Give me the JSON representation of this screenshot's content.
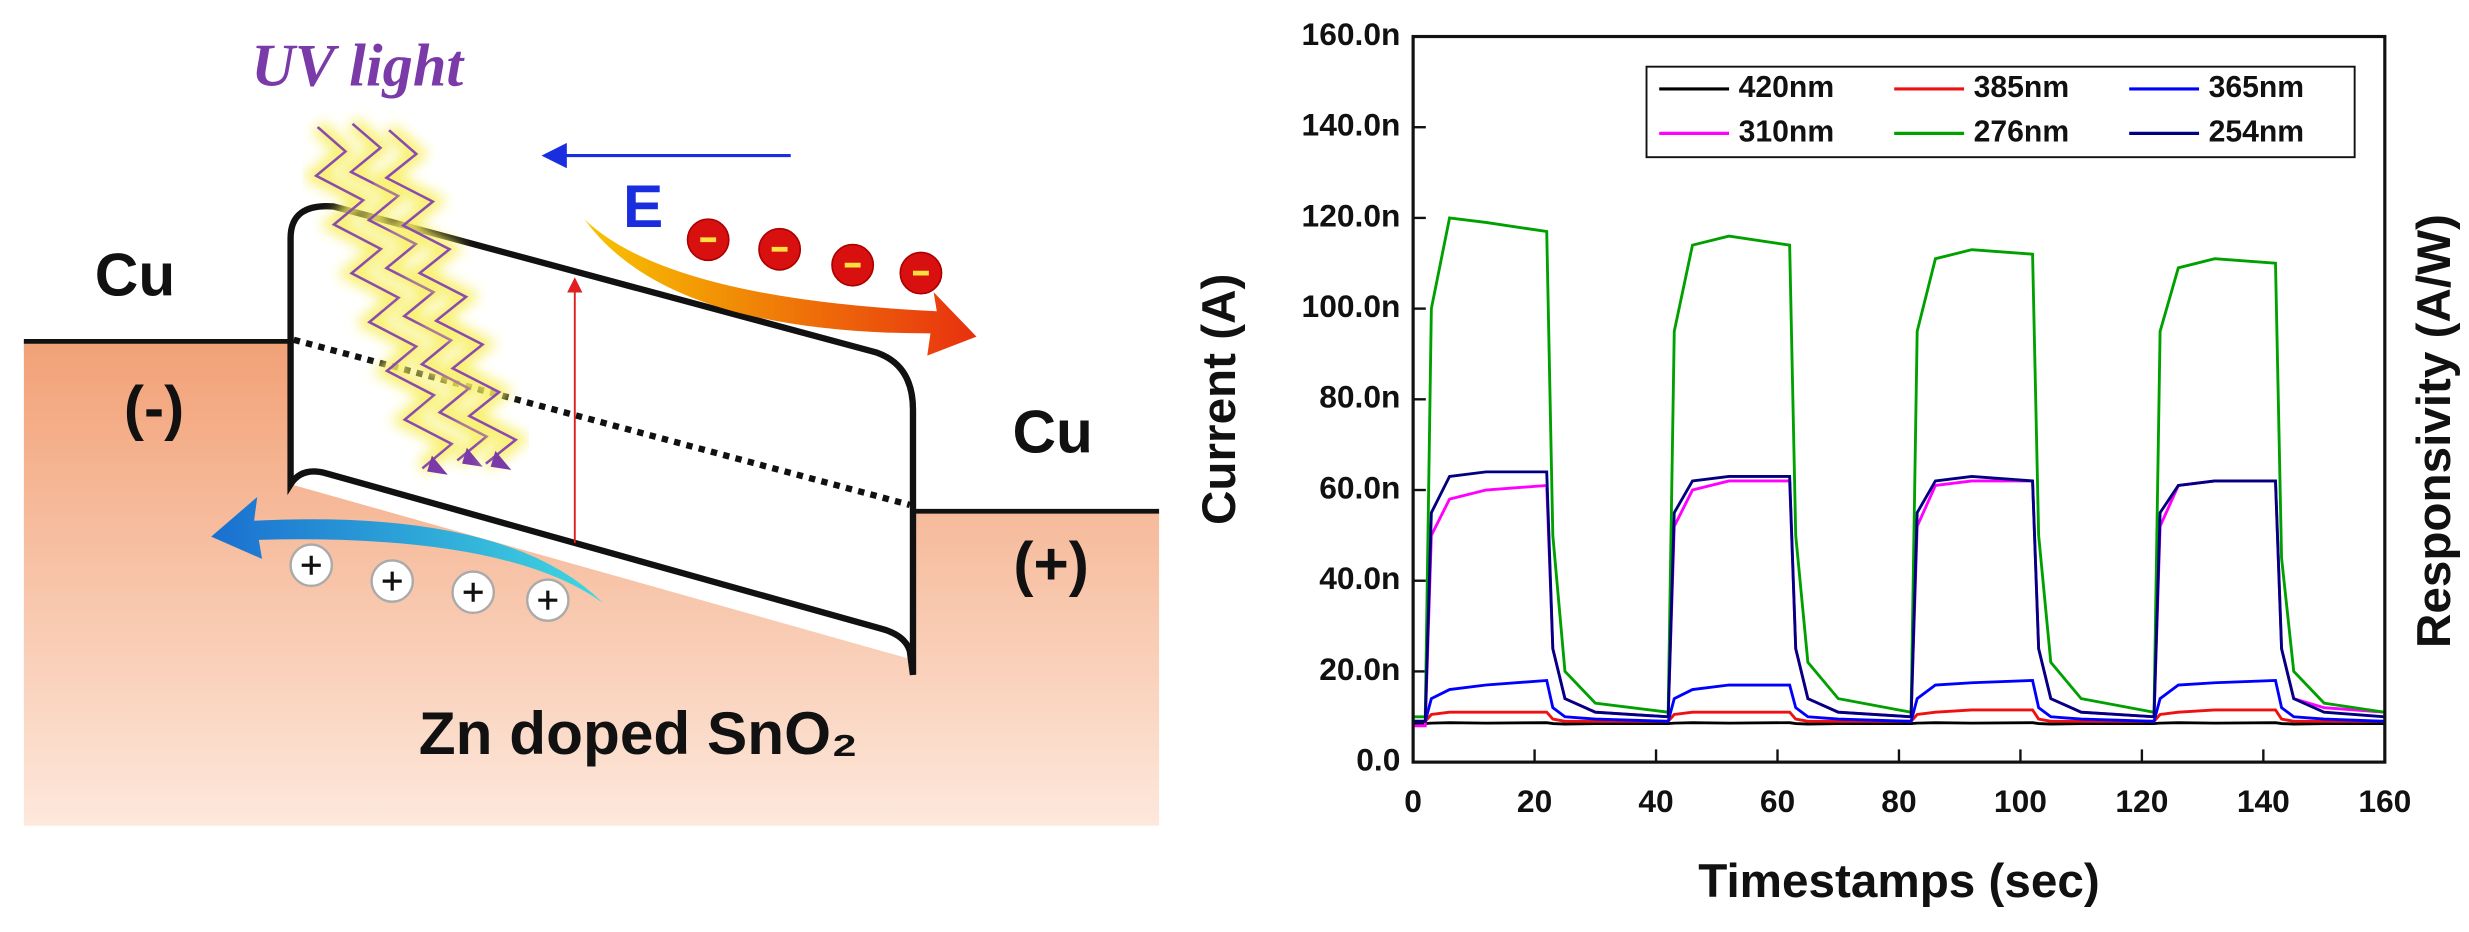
{
  "diagram": {
    "uv_label": "UV light",
    "field_label": "E",
    "left_contact": "Cu",
    "left_sign": "(-)",
    "right_contact": "Cu",
    "right_sign": "(+)",
    "material": "Zn doped SnO₂"
  },
  "chart_data": {
    "type": "line",
    "x_label": "Timestamps (sec)",
    "y_label": "Current (A)",
    "y2_label": "Responsivity (A/W)",
    "xlim": [
      0,
      160
    ],
    "xticks": [
      0,
      20,
      40,
      60,
      80,
      100,
      120,
      140,
      160
    ],
    "ylim": [
      0,
      1.6e-07
    ],
    "yticks": [
      {
        "value": 0,
        "label": "0.0"
      },
      {
        "value": 2e-08,
        "label": "20.0n"
      },
      {
        "value": 4e-08,
        "label": "40.0n"
      },
      {
        "value": 6e-08,
        "label": "60.0n"
      },
      {
        "value": 8e-08,
        "label": "80.0n"
      },
      {
        "value": 1e-07,
        "label": "100.0n"
      },
      {
        "value": 1.2e-07,
        "label": "120.0n"
      },
      {
        "value": 1.4e-07,
        "label": "140.0n"
      },
      {
        "value": 1.6e-07,
        "label": "160.0n"
      }
    ],
    "x": [
      0,
      2,
      3,
      6,
      12,
      22,
      23,
      25,
      30,
      42,
      43,
      46,
      52,
      62,
      63,
      65,
      70,
      82,
      83,
      86,
      92,
      102,
      103,
      105,
      110,
      122,
      123,
      126,
      132,
      142,
      143,
      145,
      150,
      160
    ],
    "series": [
      {
        "name": "420nm",
        "color": "#000000",
        "values": [
          8.5e-09,
          8.5e-09,
          8.6e-09,
          8.7e-09,
          8.6e-09,
          8.7e-09,
          8.5e-09,
          8.4e-09,
          8.5e-09,
          8.5e-09,
          8.6e-09,
          8.7e-09,
          8.6e-09,
          8.7e-09,
          8.5e-09,
          8.4e-09,
          8.5e-09,
          8.5e-09,
          8.6e-09,
          8.7e-09,
          8.6e-09,
          8.7e-09,
          8.5e-09,
          8.4e-09,
          8.5e-09,
          8.5e-09,
          8.6e-09,
          8.7e-09,
          8.6e-09,
          8.7e-09,
          8.5e-09,
          8.4e-09,
          8.5e-09,
          8.5e-09
        ]
      },
      {
        "name": "385nm",
        "color": "#ee1111",
        "values": [
          9e-09,
          9e-09,
          1.05e-08,
          1.1e-08,
          1.1e-08,
          1.1e-08,
          9.5e-09,
          9e-09,
          9e-09,
          9e-09,
          1.05e-08,
          1.1e-08,
          1.1e-08,
          1.1e-08,
          9.5e-09,
          9e-09,
          9e-09,
          9e-09,
          1.05e-08,
          1.1e-08,
          1.15e-08,
          1.15e-08,
          9.5e-09,
          9e-09,
          9e-09,
          9e-09,
          1.05e-08,
          1.1e-08,
          1.15e-08,
          1.15e-08,
          9.5e-09,
          9e-09,
          9e-09,
          9e-09
        ]
      },
      {
        "name": "365nm",
        "color": "#0000ff",
        "values": [
          9e-09,
          9e-09,
          1.4e-08,
          1.6e-08,
          1.7e-08,
          1.8e-08,
          1.2e-08,
          1e-08,
          9.5e-09,
          9e-09,
          1.4e-08,
          1.6e-08,
          1.7e-08,
          1.7e-08,
          1.2e-08,
          1e-08,
          9.5e-09,
          9e-09,
          1.4e-08,
          1.7e-08,
          1.75e-08,
          1.8e-08,
          1.2e-08,
          1e-08,
          9.5e-09,
          9e-09,
          1.4e-08,
          1.7e-08,
          1.75e-08,
          1.8e-08,
          1.2e-08,
          1e-08,
          9.5e-09,
          9e-09
        ]
      },
      {
        "name": "310nm",
        "color": "#ff00ff",
        "values": [
          8e-09,
          8e-09,
          5e-08,
          5.8e-08,
          6e-08,
          6.1e-08,
          2.5e-08,
          1.4e-08,
          1.1e-08,
          1e-08,
          5.2e-08,
          6e-08,
          6.2e-08,
          6.2e-08,
          2.5e-08,
          1.4e-08,
          1.1e-08,
          1e-08,
          5.2e-08,
          6.1e-08,
          6.2e-08,
          6.2e-08,
          2.5e-08,
          1.4e-08,
          1.1e-08,
          1e-08,
          5.2e-08,
          6.1e-08,
          6.2e-08,
          6.2e-08,
          2.5e-08,
          1.4e-08,
          1.2e-08,
          1.1e-08
        ]
      },
      {
        "name": "276nm",
        "color": "#00a000",
        "values": [
          1e-08,
          1e-08,
          1e-07,
          1.2e-07,
          1.19e-07,
          1.17e-07,
          5e-08,
          2e-08,
          1.3e-08,
          1.1e-08,
          9.5e-08,
          1.14e-07,
          1.16e-07,
          1.14e-07,
          5e-08,
          2.2e-08,
          1.4e-08,
          1.1e-08,
          9.5e-08,
          1.11e-07,
          1.13e-07,
          1.12e-07,
          5e-08,
          2.2e-08,
          1.4e-08,
          1.1e-08,
          9.5e-08,
          1.09e-07,
          1.11e-07,
          1.1e-07,
          4.5e-08,
          2e-08,
          1.3e-08,
          1.1e-08
        ]
      },
      {
        "name": "254nm",
        "color": "#000080",
        "values": [
          9e-09,
          9e-09,
          5.5e-08,
          6.3e-08,
          6.4e-08,
          6.4e-08,
          2.5e-08,
          1.4e-08,
          1.1e-08,
          1e-08,
          5.5e-08,
          6.2e-08,
          6.3e-08,
          6.3e-08,
          2.5e-08,
          1.4e-08,
          1.1e-08,
          1e-08,
          5.5e-08,
          6.2e-08,
          6.3e-08,
          6.2e-08,
          2.5e-08,
          1.4e-08,
          1.1e-08,
          1e-08,
          5.5e-08,
          6.1e-08,
          6.2e-08,
          6.2e-08,
          2.5e-08,
          1.4e-08,
          1.1e-08,
          1e-08
        ]
      }
    ]
  }
}
